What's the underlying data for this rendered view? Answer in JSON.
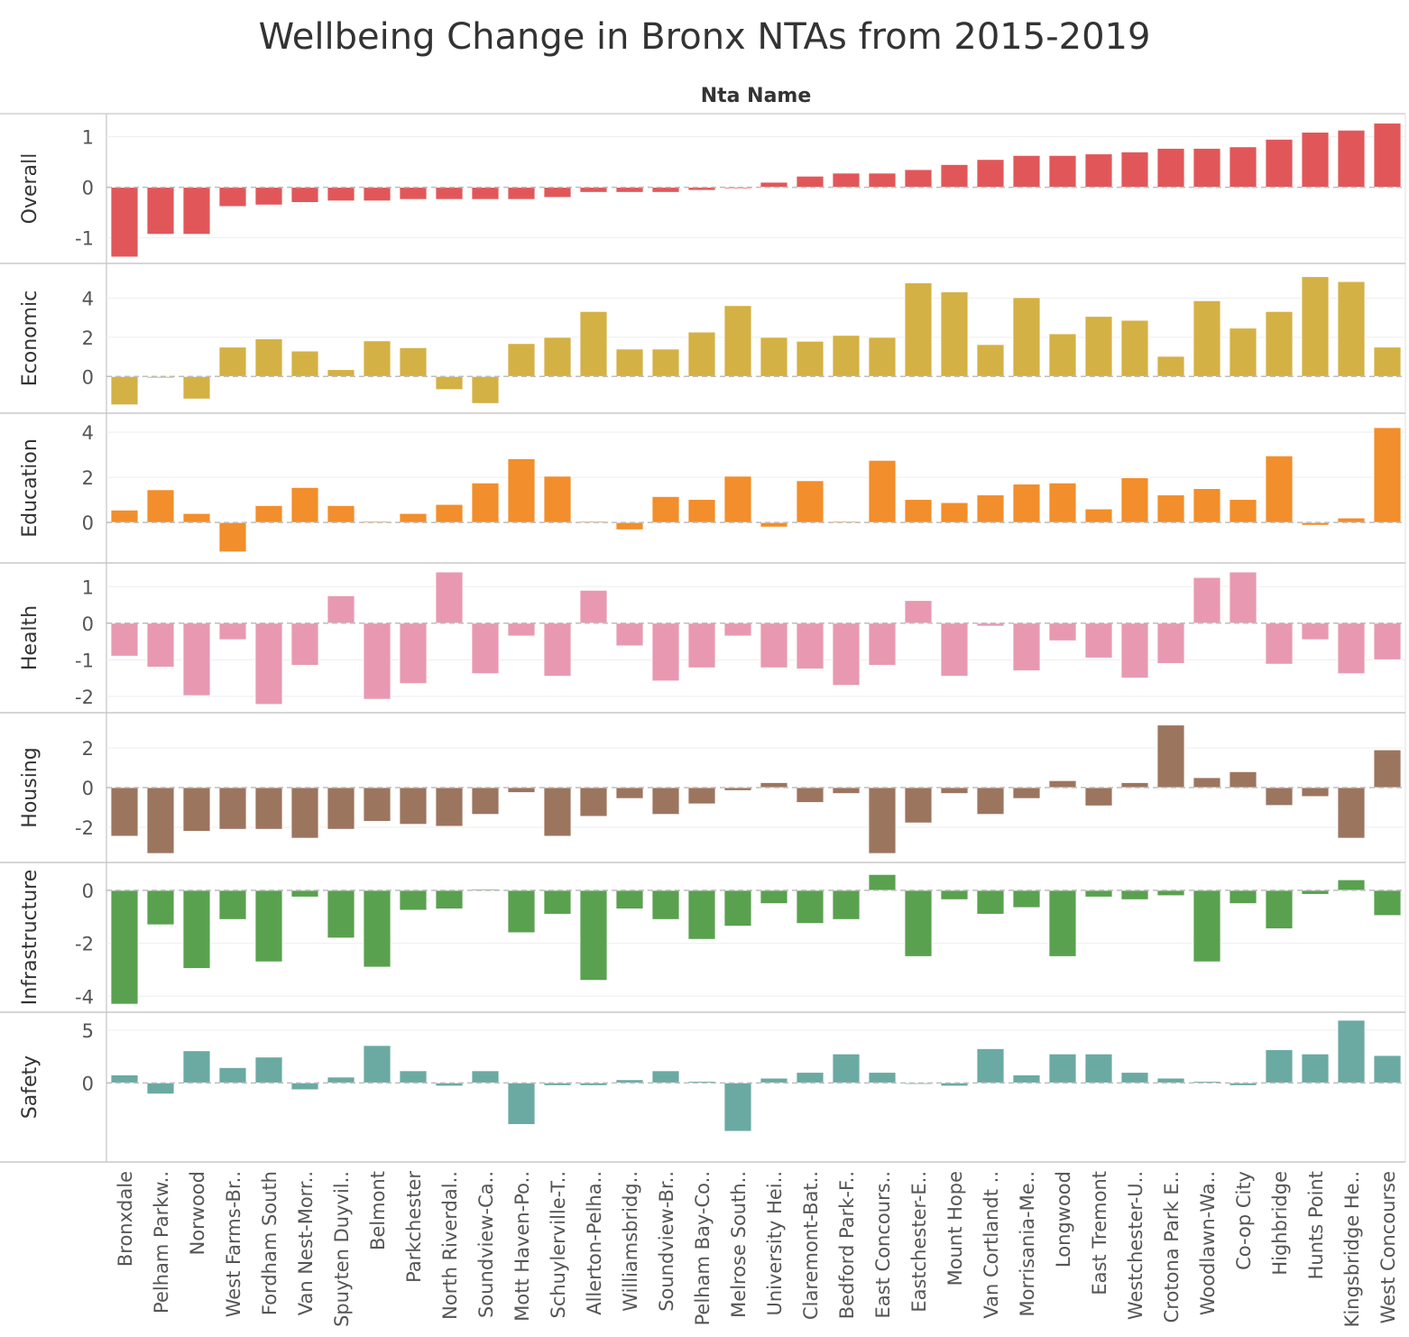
{
  "title": "Wellbeing Change in Bronx NTAs from 2015-2019",
  "column_header": "Nta Name",
  "chart_data": {
    "type": "bar",
    "layout": "small-multiples",
    "title": "Wellbeing Change in Bronx NTAs from 2015-2019",
    "xlabel": "Nta Name",
    "categories": [
      "Bronxdale",
      "Pelham Parkw..",
      "Norwood",
      "West Farms-Br..",
      "Fordham South",
      "Van Nest-Morr..",
      "Spuyten Duyvil..",
      "Belmont",
      "Parkchester",
      "North Riverdal..",
      "Soundview-Ca..",
      "Mott Haven-Po..",
      "Schuylerville-T..",
      "Allerton-Pelha..",
      "Williamsbridg..",
      "Soundview-Br..",
      "Pelham Bay-Co..",
      "Melrose South..",
      "University Hei..",
      "Claremont-Bat..",
      "Bedford Park-F..",
      "East Concours..",
      "Eastchester-E..",
      "Mount Hope",
      "Van Cortlandt ..",
      "Morrisania-Me..",
      "Longwood",
      "East Tremont",
      "Westchester-U..",
      "Crotona Park E..",
      "Woodlawn-Wa..",
      "Co-op City",
      "Highbridge",
      "Hunts Point",
      "Kingsbridge He..",
      "West Concourse"
    ],
    "series": [
      {
        "name": "Overall",
        "color": "#e15759",
        "ylim": [
          -1.4,
          1.35
        ],
        "ticks": [
          1,
          0,
          -1
        ],
        "tick_labels": [
          "1",
          "0",
          "-1"
        ],
        "values": [
          -1.38,
          -0.93,
          -0.93,
          -0.38,
          -0.35,
          -0.3,
          -0.27,
          -0.27,
          -0.24,
          -0.24,
          -0.24,
          -0.24,
          -0.2,
          -0.1,
          -0.1,
          -0.1,
          -0.06,
          -0.02,
          0.1,
          0.22,
          0.28,
          0.28,
          0.35,
          0.45,
          0.55,
          0.63,
          0.63,
          0.66,
          0.7,
          0.77,
          0.77,
          0.8,
          0.95,
          1.09,
          1.13,
          1.27
        ]
      },
      {
        "name": "Economic",
        "color": "#d4b145",
        "ylim": [
          -1.6,
          5.5
        ],
        "ticks": [
          4,
          2,
          0
        ],
        "tick_labels": [
          "4",
          "2",
          "0"
        ],
        "values": [
          -1.45,
          -0.08,
          -1.15,
          1.5,
          1.92,
          1.3,
          0.35,
          1.82,
          1.47,
          -0.67,
          -1.38,
          1.68,
          2.0,
          3.32,
          1.4,
          1.4,
          2.27,
          3.62,
          2.0,
          1.8,
          2.1,
          2.0,
          4.78,
          4.32,
          1.63,
          4.03,
          2.18,
          3.07,
          2.87,
          1.03,
          3.87,
          2.47,
          3.32,
          5.1,
          4.85,
          1.5
        ]
      },
      {
        "name": "Education",
        "color": "#f28e2b",
        "ylim": [
          -1.55,
          4.6
        ],
        "ticks": [
          4,
          2,
          0
        ],
        "tick_labels": [
          "4",
          "2",
          "0"
        ],
        "values": [
          0.55,
          1.45,
          0.4,
          -1.3,
          0.75,
          1.55,
          0.75,
          0.05,
          0.4,
          0.8,
          1.75,
          2.82,
          2.05,
          0.05,
          -0.32,
          1.15,
          1.02,
          2.05,
          -0.2,
          1.85,
          0.05,
          2.75,
          1.02,
          0.88,
          1.22,
          1.7,
          1.75,
          0.6,
          1.98,
          1.22,
          1.5,
          1.02,
          2.95,
          -0.12,
          0.2,
          4.2
        ]
      },
      {
        "name": "Health",
        "color": "#e899b1",
        "ylim": [
          -2.3,
          1.5
        ],
        "ticks": [
          1,
          0,
          -1,
          -2
        ],
        "tick_labels": [
          "1",
          "0",
          "-1",
          "-2"
        ],
        "values": [
          -0.9,
          -1.2,
          -1.98,
          -0.45,
          -2.22,
          -1.15,
          0.75,
          -2.08,
          -1.65,
          1.4,
          -1.38,
          -0.35,
          -1.45,
          0.9,
          -0.62,
          -1.58,
          -1.22,
          -0.35,
          -1.22,
          -1.25,
          -1.7,
          -1.15,
          0.62,
          -1.45,
          -0.08,
          -1.3,
          -0.48,
          -0.95,
          -1.5,
          -1.1,
          1.25,
          1.4,
          -1.12,
          -0.45,
          -1.38,
          -1.0
        ]
      },
      {
        "name": "Housing",
        "color": "#9c755f",
        "ylim": [
          -3.5,
          3.5
        ],
        "ticks": [
          2,
          0,
          -2
        ],
        "tick_labels": [
          "2",
          "0",
          "-2"
        ],
        "values": [
          -2.45,
          -3.32,
          -2.2,
          -2.1,
          -2.1,
          -2.55,
          -2.1,
          -1.7,
          -1.85,
          -1.95,
          -1.35,
          -0.25,
          -2.45,
          -1.45,
          -0.55,
          -1.35,
          -0.82,
          -0.15,
          0.25,
          -0.75,
          -0.3,
          -3.32,
          -1.78,
          -0.3,
          -1.35,
          -0.55,
          0.35,
          -0.92,
          0.25,
          3.15,
          0.5,
          0.8,
          -0.9,
          -0.45,
          -2.55,
          1.9
        ]
      },
      {
        "name": "Infrastructure",
        "color": "#59a14f",
        "ylim": [
          -4.4,
          0.85
        ],
        "ticks": [
          0,
          -2,
          -4
        ],
        "tick_labels": [
          "0",
          "-2",
          "-4"
        ],
        "values": [
          -4.3,
          -1.3,
          -2.95,
          -1.1,
          -2.7,
          -0.25,
          -1.8,
          -2.9,
          -0.75,
          -0.7,
          0.05,
          -1.6,
          -0.9,
          -3.4,
          -0.7,
          -1.1,
          -1.85,
          -1.35,
          -0.5,
          -1.25,
          -1.1,
          0.6,
          -2.5,
          -0.35,
          -0.9,
          -0.65,
          -2.5,
          -0.25,
          -0.35,
          -0.2,
          -2.7,
          -0.5,
          -1.45,
          -0.15,
          0.4,
          -0.95
        ]
      },
      {
        "name": "Safety",
        "color": "#6aaaa2",
        "ylim": [
          -7.0,
          6.2
        ],
        "ticks": [
          5,
          0
        ],
        "tick_labels": [
          "5",
          "0"
        ],
        "values": [
          0.75,
          -1.05,
          3.05,
          1.45,
          2.45,
          -0.65,
          0.55,
          3.55,
          1.15,
          -0.3,
          1.15,
          -3.95,
          -0.25,
          -0.25,
          0.3,
          1.15,
          0.15,
          -4.6,
          0.45,
          1.0,
          2.75,
          1.0,
          -0.1,
          -0.3,
          3.25,
          0.75,
          2.75,
          2.75,
          1.0,
          0.45,
          0.15,
          -0.25,
          3.15,
          2.75,
          5.95,
          2.6
        ]
      }
    ]
  }
}
